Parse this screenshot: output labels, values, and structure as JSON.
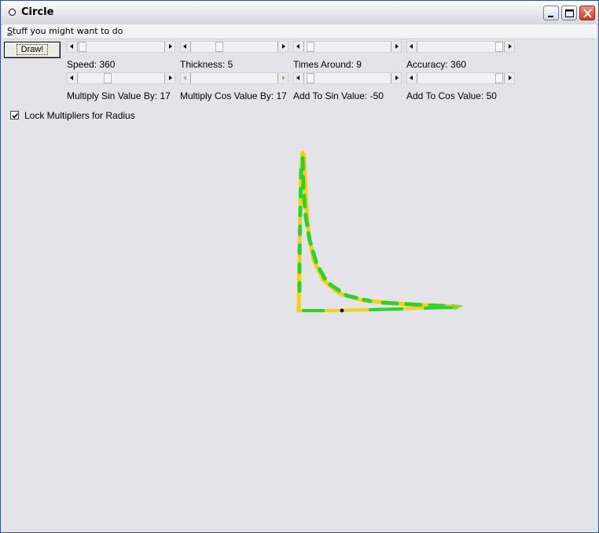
{
  "window": {
    "title": "Circle"
  },
  "menu": {
    "item_accel": "S",
    "item_rest": "tuff you might want to do"
  },
  "toolbar": {
    "draw_label": "Draw!"
  },
  "sliders": [
    {
      "label": "Speed: 360",
      "position": 0.1
    },
    {
      "label": "Thickness: 5",
      "position": 0.3
    },
    {
      "label": "Times Around: 9",
      "position": 0.02
    },
    {
      "label": "Accuracy: 360",
      "position": 1.0
    },
    {
      "label": "Multiply Sin Value By: 17",
      "position": 0.45
    },
    {
      "label": "Multiply Cos Value By: 17",
      "position": 0.0,
      "disabled": true
    },
    {
      "label": "Add To Sin Value: -50",
      "position": 0.02
    },
    {
      "label": "Add To Cos Value: 50",
      "position": 1.0
    }
  ],
  "options": {
    "lock_label": "Lock Multipliers for Radius",
    "lock_checked": true
  },
  "drawing": {
    "colors": [
      "#f2d11b",
      "#2fd12f",
      "#95d21e"
    ],
    "marker_color": "#111111"
  }
}
